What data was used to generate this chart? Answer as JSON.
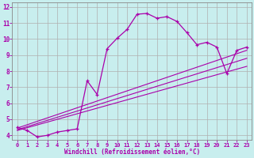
{
  "xlabel": "Windchill (Refroidissement éolien,°C)",
  "xlim": [
    -0.5,
    23.5
  ],
  "ylim": [
    3.7,
    12.3
  ],
  "xticks": [
    0,
    1,
    2,
    3,
    4,
    5,
    6,
    7,
    8,
    9,
    10,
    11,
    12,
    13,
    14,
    15,
    16,
    17,
    18,
    19,
    20,
    21,
    22,
    23
  ],
  "yticks": [
    4,
    5,
    6,
    7,
    8,
    9,
    10,
    11,
    12
  ],
  "bg_color": "#c8eeee",
  "line_color": "#aa00aa",
  "grid_color": "#b0b0b0",
  "line1_x": [
    0,
    1,
    2,
    3,
    4,
    5,
    6,
    7,
    8,
    9,
    10,
    11,
    12,
    13,
    14,
    15,
    16,
    17,
    18,
    19,
    20,
    21,
    22,
    23
  ],
  "line1_y": [
    4.5,
    4.3,
    3.9,
    4.0,
    4.2,
    4.3,
    4.4,
    7.4,
    6.55,
    9.4,
    10.05,
    10.6,
    11.55,
    11.6,
    11.3,
    11.4,
    11.1,
    10.4,
    9.65,
    9.8,
    9.5,
    7.85,
    9.3,
    9.5
  ],
  "line2_x": [
    0,
    23
  ],
  "line2_y": [
    4.45,
    9.3
  ],
  "line3_x": [
    0,
    23
  ],
  "line3_y": [
    4.35,
    8.8
  ],
  "line4_x": [
    0,
    23
  ],
  "line4_y": [
    4.3,
    8.3
  ]
}
